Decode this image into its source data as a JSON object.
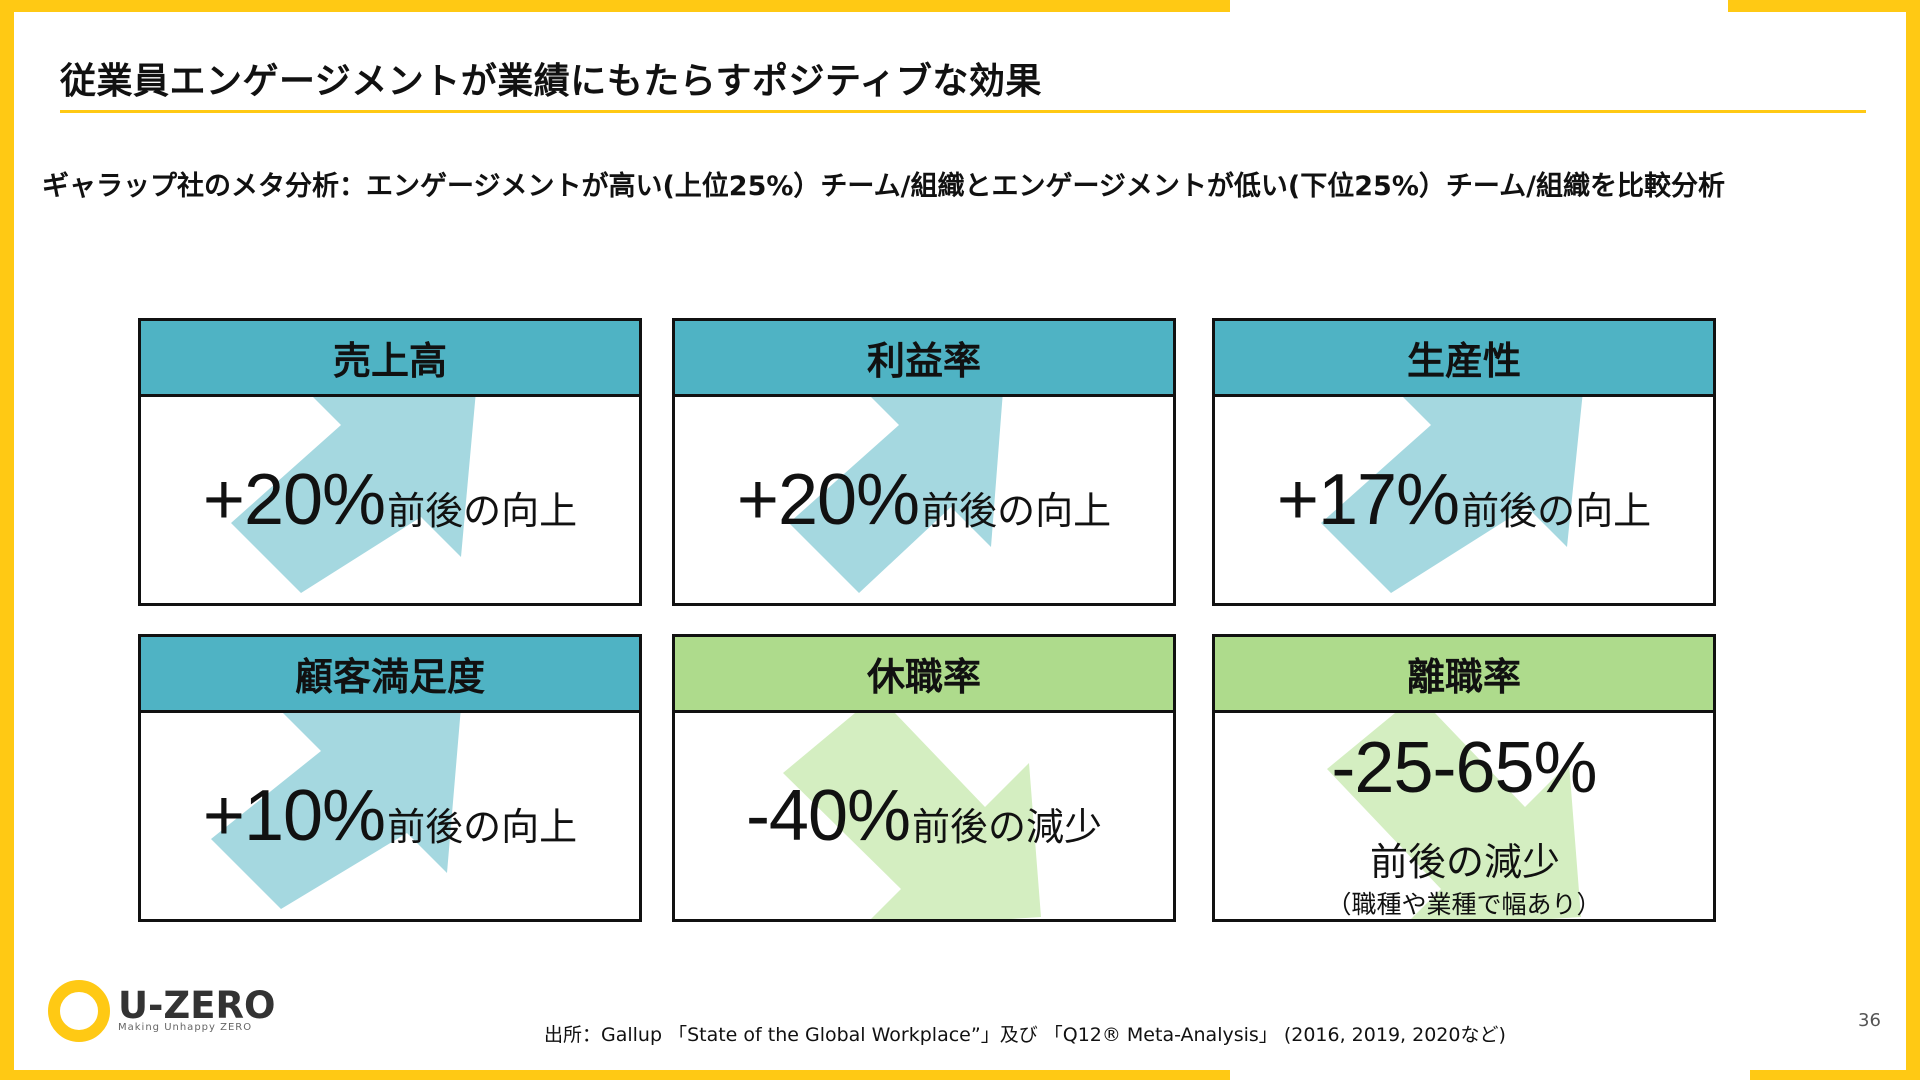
{
  "slide": {
    "title": "従業員エンゲージメントが業績にもたらすポジティブな効果",
    "subtitle": "ギャラップ社のメタ分析：エンゲージメントが高い(上位25%）チーム/組織とエンゲージメントが低い(下位25%）チーム/組織を比較分析",
    "page_number": "36"
  },
  "colors": {
    "frame": "#FFC914",
    "header_positive": "#4FB3C4",
    "header_negative": "#AEDB8C",
    "arrow_up": "#A5D8E0",
    "arrow_down": "#D4EEC1"
  },
  "cards": [
    {
      "header": "売上高",
      "value": "+20%",
      "unit": "前後の向上",
      "trend": "up",
      "icon": "arrow-up-right-icon"
    },
    {
      "header": "利益率",
      "value": "+20%",
      "unit": "前後の向上",
      "trend": "up",
      "icon": "arrow-up-right-icon"
    },
    {
      "header": "生産性",
      "value": "+17%",
      "unit": "前後の向上",
      "trend": "up",
      "icon": "arrow-up-right-icon"
    },
    {
      "header": "顧客満足度",
      "value": "+10%",
      "unit": "前後の向上",
      "trend": "up",
      "icon": "arrow-up-right-icon"
    },
    {
      "header": "休職率",
      "value": "-40%",
      "unit": "前後の減少",
      "trend": "down",
      "icon": "arrow-down-right-icon"
    },
    {
      "header": "離職率",
      "value": "-25-65%",
      "unit": "前後の減少",
      "note": "（職種や業種で幅あり）",
      "trend": "down",
      "icon": "arrow-down-right-icon"
    }
  ],
  "logo": {
    "name": "U-ZERO",
    "tagline": "Making Unhappy ZERO"
  },
  "source": "出所：Gallup 「State of the Global Workplace”」及び 「Q12® Meta-Analysis」 (2016, 2019, 2020など)"
}
